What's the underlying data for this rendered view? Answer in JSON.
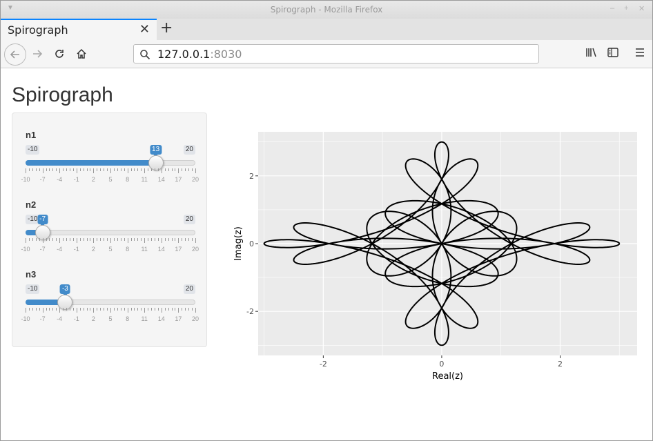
{
  "window": {
    "title": "Spirograph - Mozilla Firefox"
  },
  "tab": {
    "label": "Spirograph"
  },
  "url": {
    "host": "127.0.0.1",
    "port": ":8030"
  },
  "page": {
    "title": "Spirograph"
  },
  "sliders": [
    {
      "label": "n1",
      "min": -10,
      "max": 20,
      "value": 13,
      "min_label": "-10",
      "max_label": "20",
      "value_label": "13",
      "ticks": [
        "-10",
        "-7",
        "-4",
        "-1",
        "2",
        "5",
        "8",
        "11",
        "14",
        "17",
        "20"
      ]
    },
    {
      "label": "n2",
      "min": -10,
      "max": 20,
      "value": -7,
      "min_label": "-10",
      "max_label": "20",
      "value_label": "-7",
      "ticks": [
        "-10",
        "-7",
        "-4",
        "-1",
        "2",
        "5",
        "8",
        "11",
        "14",
        "17",
        "20"
      ]
    },
    {
      "label": "n3",
      "min": -10,
      "max": 20,
      "value": -3,
      "min_label": "-10",
      "max_label": "20",
      "value_label": "-3",
      "ticks": [
        "-10",
        "-7",
        "-4",
        "-1",
        "2",
        "5",
        "8",
        "11",
        "14",
        "17",
        "20"
      ]
    }
  ],
  "colors": {
    "accent": "#428bca",
    "panel_bg": "#ebebeb",
    "gridline": "#ffffff",
    "curve": "#000000"
  },
  "chart_data": {
    "type": "line",
    "title": "",
    "xlabel": "Real(z)",
    "ylabel": "Imag(z)",
    "xlim": [
      -3.1,
      3.3
    ],
    "ylim": [
      -3.3,
      3.3
    ],
    "xticks": [
      -2,
      0,
      2
    ],
    "xtick_labels": [
      "-2",
      "0",
      "2"
    ],
    "yticks": [
      -2,
      0,
      2
    ],
    "ytick_labels": [
      "-2",
      "0",
      "2"
    ],
    "grid": true,
    "series": [
      {
        "terms": [
          {
            "freq": 13,
            "amp": 1,
            "axis": "x"
          },
          {
            "freq": -7,
            "amp": 1,
            "axis": "x"
          },
          {
            "freq": -3,
            "amp": 1,
            "axis": "x"
          }
        ],
        "samples": 1600
      }
    ]
  }
}
